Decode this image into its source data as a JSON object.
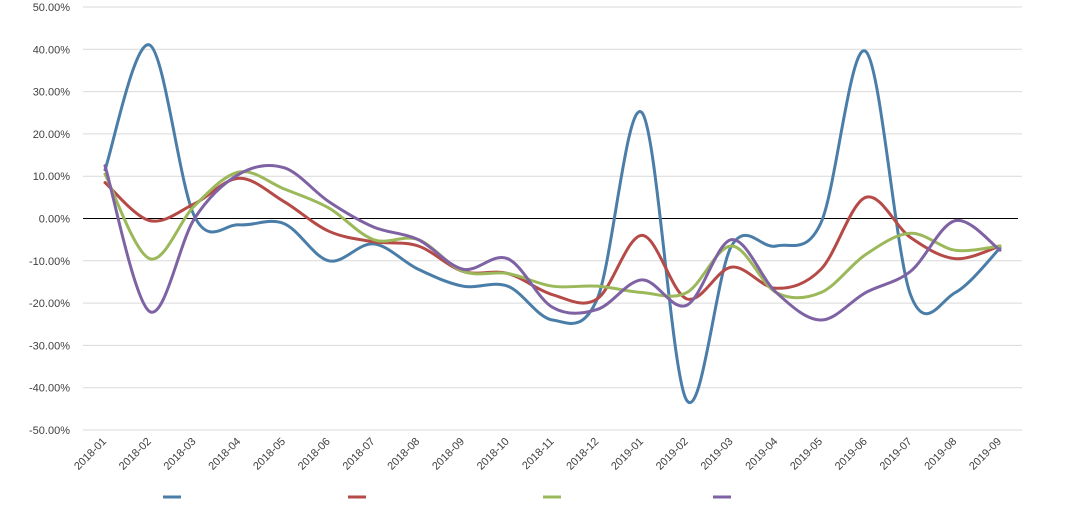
{
  "chart_data": {
    "type": "line",
    "title": "",
    "xlabel": "",
    "ylabel": "",
    "categories": [
      "2018-01",
      "2018-02",
      "2018-03",
      "2018-04",
      "2018-05",
      "2018-06",
      "2018-07",
      "2018-08",
      "2018-09",
      "2018-10",
      "2018-11",
      "2018-12",
      "2019-01",
      "2019-02",
      "2019-03",
      "2019-04",
      "2019-05",
      "2019-06",
      "2019-07",
      "2019-08",
      "2019-09"
    ],
    "y_ticks": [
      "50.00%",
      "40.00%",
      "30.00%",
      "20.00%",
      "10.00%",
      "0.00%",
      "-10.00%",
      "-20.00%",
      "-30.00%",
      "-40.00%",
      "-50.00%"
    ],
    "ylim": [
      -50,
      50
    ],
    "y_unit": "%",
    "grid": true,
    "legend_position": "bottom",
    "series": [
      {
        "name": "",
        "color": "#4a7ea8",
        "values": [
          11.5,
          41,
          0.5,
          -1.5,
          -1.2,
          -10,
          -6,
          -12,
          -16,
          -16,
          -24,
          -19,
          25,
          -43,
          -6.5,
          -6.5,
          -1,
          39.5,
          -18,
          -17.5,
          -7
        ]
      },
      {
        "name": "",
        "color": "#b54a47",
        "values": [
          8.5,
          -0.5,
          3.5,
          9.5,
          4,
          -3,
          -5.5,
          -6.5,
          -12.5,
          -13,
          -18,
          -19,
          -4,
          -19,
          -11.5,
          -16.5,
          -12,
          5,
          -4.5,
          -9.5,
          -6.5
        ]
      },
      {
        "name": "",
        "color": "#9bb85a",
        "values": [
          10.5,
          -9.5,
          3,
          11,
          7,
          2.5,
          -5,
          -5,
          -12.5,
          -13,
          -16,
          -16,
          -17.5,
          -17.5,
          -6.5,
          -17.5,
          -17.5,
          -8.5,
          -3.5,
          -7.5,
          -6.5
        ]
      },
      {
        "name": "",
        "color": "#7e62a3",
        "values": [
          12.5,
          -22,
          0,
          10.5,
          12,
          4,
          -2,
          -5,
          -12,
          -9.5,
          -21,
          -21.5,
          -14.5,
          -20.5,
          -5,
          -17.5,
          -24,
          -17.5,
          -12.5,
          -0.5,
          -7.5
        ]
      }
    ]
  }
}
